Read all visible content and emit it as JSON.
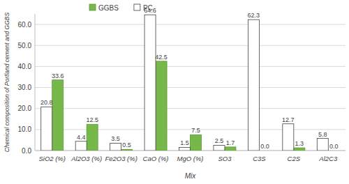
{
  "chart_data": {
    "type": "bar",
    "x_label": "Mix",
    "y_label": "Chemical composition of Portland cement and GGBS",
    "categories": [
      "SiO2 (%)",
      "Al2O3 (%)",
      "Fe2O3 (%)",
      "CaO (%)",
      "MgO (%)",
      "SO3",
      "C3S",
      "C2S",
      "Al2C3"
    ],
    "series": [
      {
        "name": "GGBS",
        "color": "#77b84a",
        "values": [
          33.6,
          12.5,
          0.5,
          42.5,
          7.5,
          1.7,
          0.0,
          1.3,
          0.0
        ],
        "value_labels": [
          "33.6",
          "12.5",
          "0.5",
          "42.5",
          "7.5",
          "1.7",
          "0.0",
          "1.3",
          "0.0"
        ]
      },
      {
        "name": "PC",
        "color": "#ffffff",
        "values": [
          20.8,
          4.4,
          3.5,
          64.6,
          1.5,
          2.5,
          62.3,
          12.7,
          5.8
        ]
      }
    ],
    "ylim": [
      0,
      65
    ],
    "yticks": [
      {
        "value": 0,
        "label": "0.0"
      },
      {
        "value": 10,
        "label": "10.0"
      },
      {
        "value": 20,
        "label": "20.0"
      },
      {
        "value": 30,
        "label": "30.0"
      },
      {
        "value": 40,
        "label": "40.0"
      },
      {
        "value": 50,
        "label": "50.0"
      },
      {
        "value": 60,
        "label": "60.0"
      }
    ],
    "grid": true,
    "legend": "top",
    "data_labels": true
  }
}
